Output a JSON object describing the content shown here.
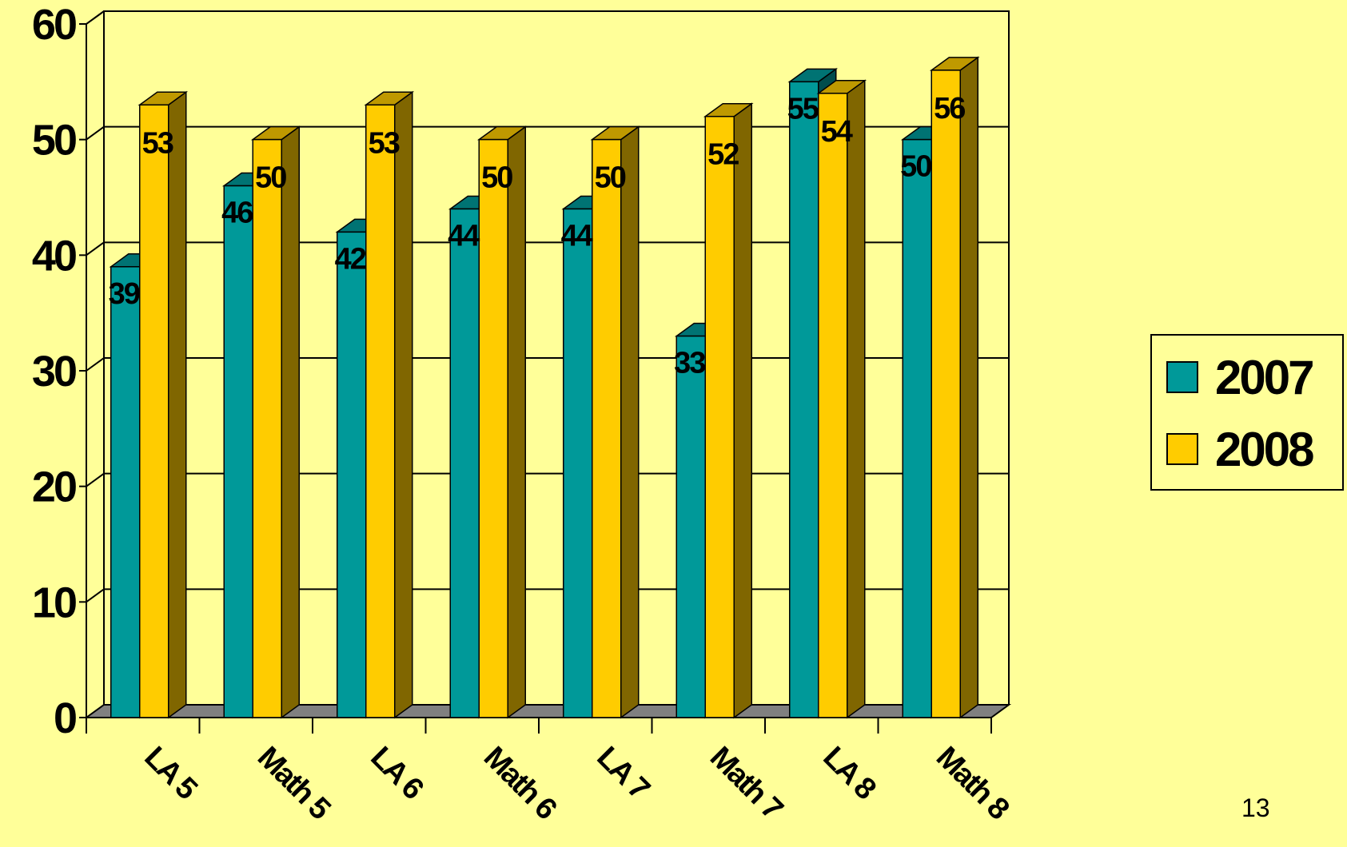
{
  "chart_data": {
    "type": "bar",
    "style": "3d-clustered-column",
    "categories": [
      "LA 5",
      "Math 5",
      "LA 6",
      "Math 6",
      "LA 7",
      "Math 7",
      "LA 8",
      "Math 8"
    ],
    "series": [
      {
        "name": "2007",
        "values": [
          39,
          46,
          42,
          44,
          44,
          33,
          55,
          50
        ],
        "color": "#009999"
      },
      {
        "name": "2008",
        "values": [
          53,
          50,
          53,
          50,
          50,
          52,
          54,
          56
        ],
        "color": "#FFCC00"
      }
    ],
    "ylim": [
      0,
      60
    ],
    "yticks": [
      "0",
      "10",
      "20",
      "30",
      "40",
      "50",
      "60"
    ],
    "grid": true,
    "legend": "right",
    "data_labels": true
  },
  "page_number": "13",
  "colors": {
    "background": "#FFFF99",
    "series_2007": "#009999",
    "series_2008": "#FFCC00",
    "floor": "#808080"
  }
}
